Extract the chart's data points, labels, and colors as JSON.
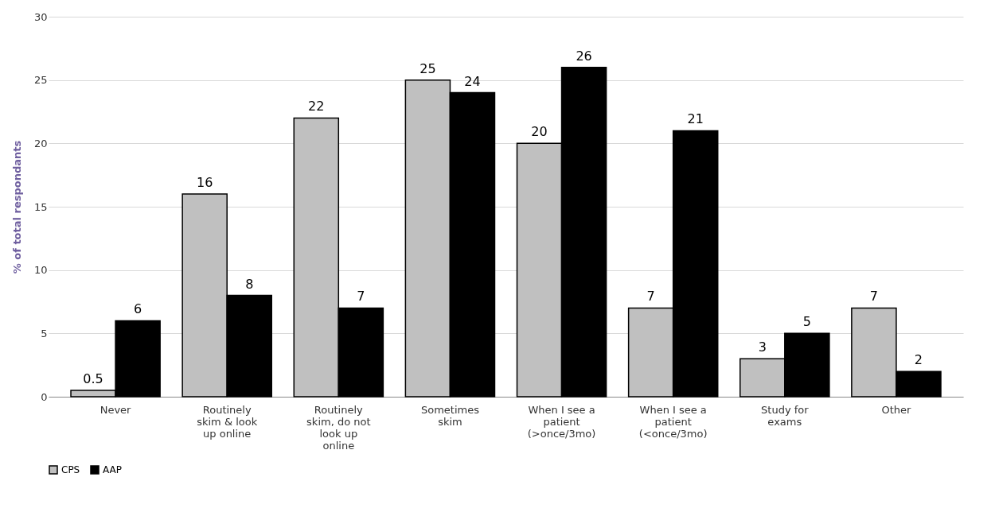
{
  "chart_data": {
    "type": "bar",
    "ylabel": "% of total respondants",
    "categories": [
      "Never",
      "Routinely skim & look up online",
      "Routinely skim, do not look up online",
      "Sometimes skim",
      "When I see a patient (>once/3mo)",
      "When I see a patient (<once/3mo)",
      "Study for exams",
      "Other"
    ],
    "series": [
      {
        "name": "CPS",
        "color": "#c0c0c0",
        "values": [
          0.5,
          16,
          22,
          25,
          20,
          7,
          3,
          7
        ]
      },
      {
        "name": "AAP",
        "color": "#000000",
        "values": [
          6,
          8,
          7,
          24,
          26,
          21,
          5,
          2
        ]
      }
    ],
    "ylim": [
      0,
      30
    ],
    "yticks": [
      0,
      5,
      10,
      15,
      20,
      25,
      30
    ],
    "grid": "y",
    "legend": "bottom",
    "data_labels": true
  }
}
